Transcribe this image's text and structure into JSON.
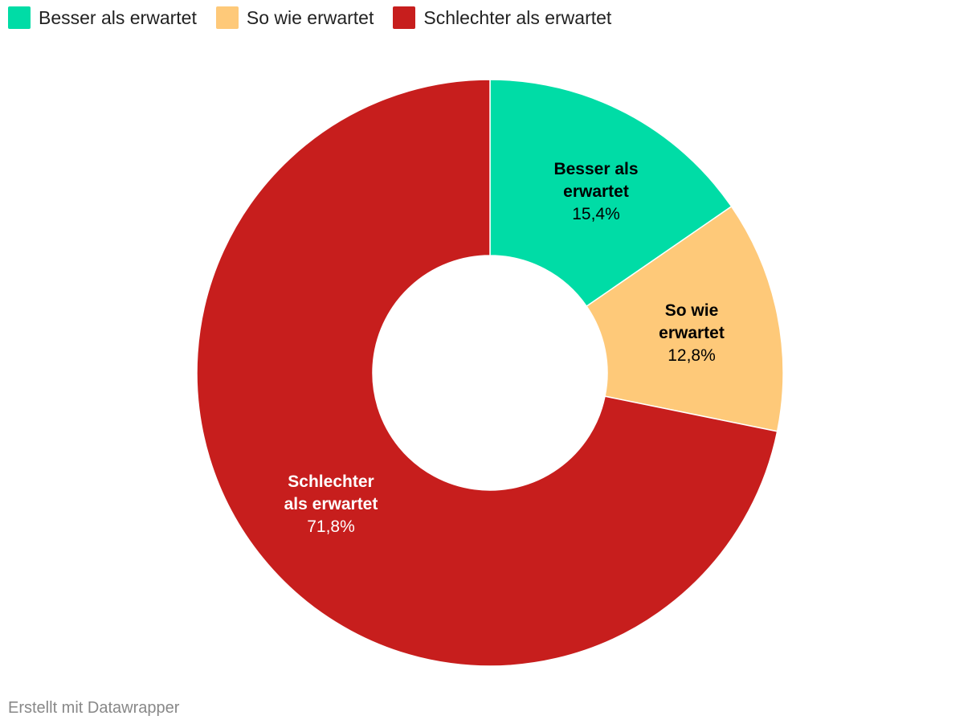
{
  "legend": {
    "items": [
      {
        "label": "Besser als erwartet",
        "color": "#00dca6"
      },
      {
        "label": "So wie erwartet",
        "color": "#fec979"
      },
      {
        "label": "Schlechter als erwartet",
        "color": "#c71e1d"
      }
    ]
  },
  "chart_data": {
    "type": "pie",
    "categories": [
      "Besser als erwartet",
      "So wie erwartet",
      "Schlechter als erwartet"
    ],
    "values": [
      15.4,
      12.8,
      71.8
    ],
    "value_labels": [
      "15,4%",
      "12,8%",
      "71,8%"
    ],
    "slice_title_lines": [
      [
        "Besser als",
        "erwartet"
      ],
      [
        "So wie",
        "erwartet"
      ],
      [
        "Schlechter",
        "als erwartet"
      ]
    ],
    "colors": [
      "#00dca6",
      "#fec979",
      "#c71e1d"
    ],
    "label_text_colors": [
      "#000000",
      "#000000",
      "#ffffff"
    ],
    "legend_position": "top-left"
  },
  "footer": {
    "credit": "Erstellt mit Datawrapper"
  }
}
